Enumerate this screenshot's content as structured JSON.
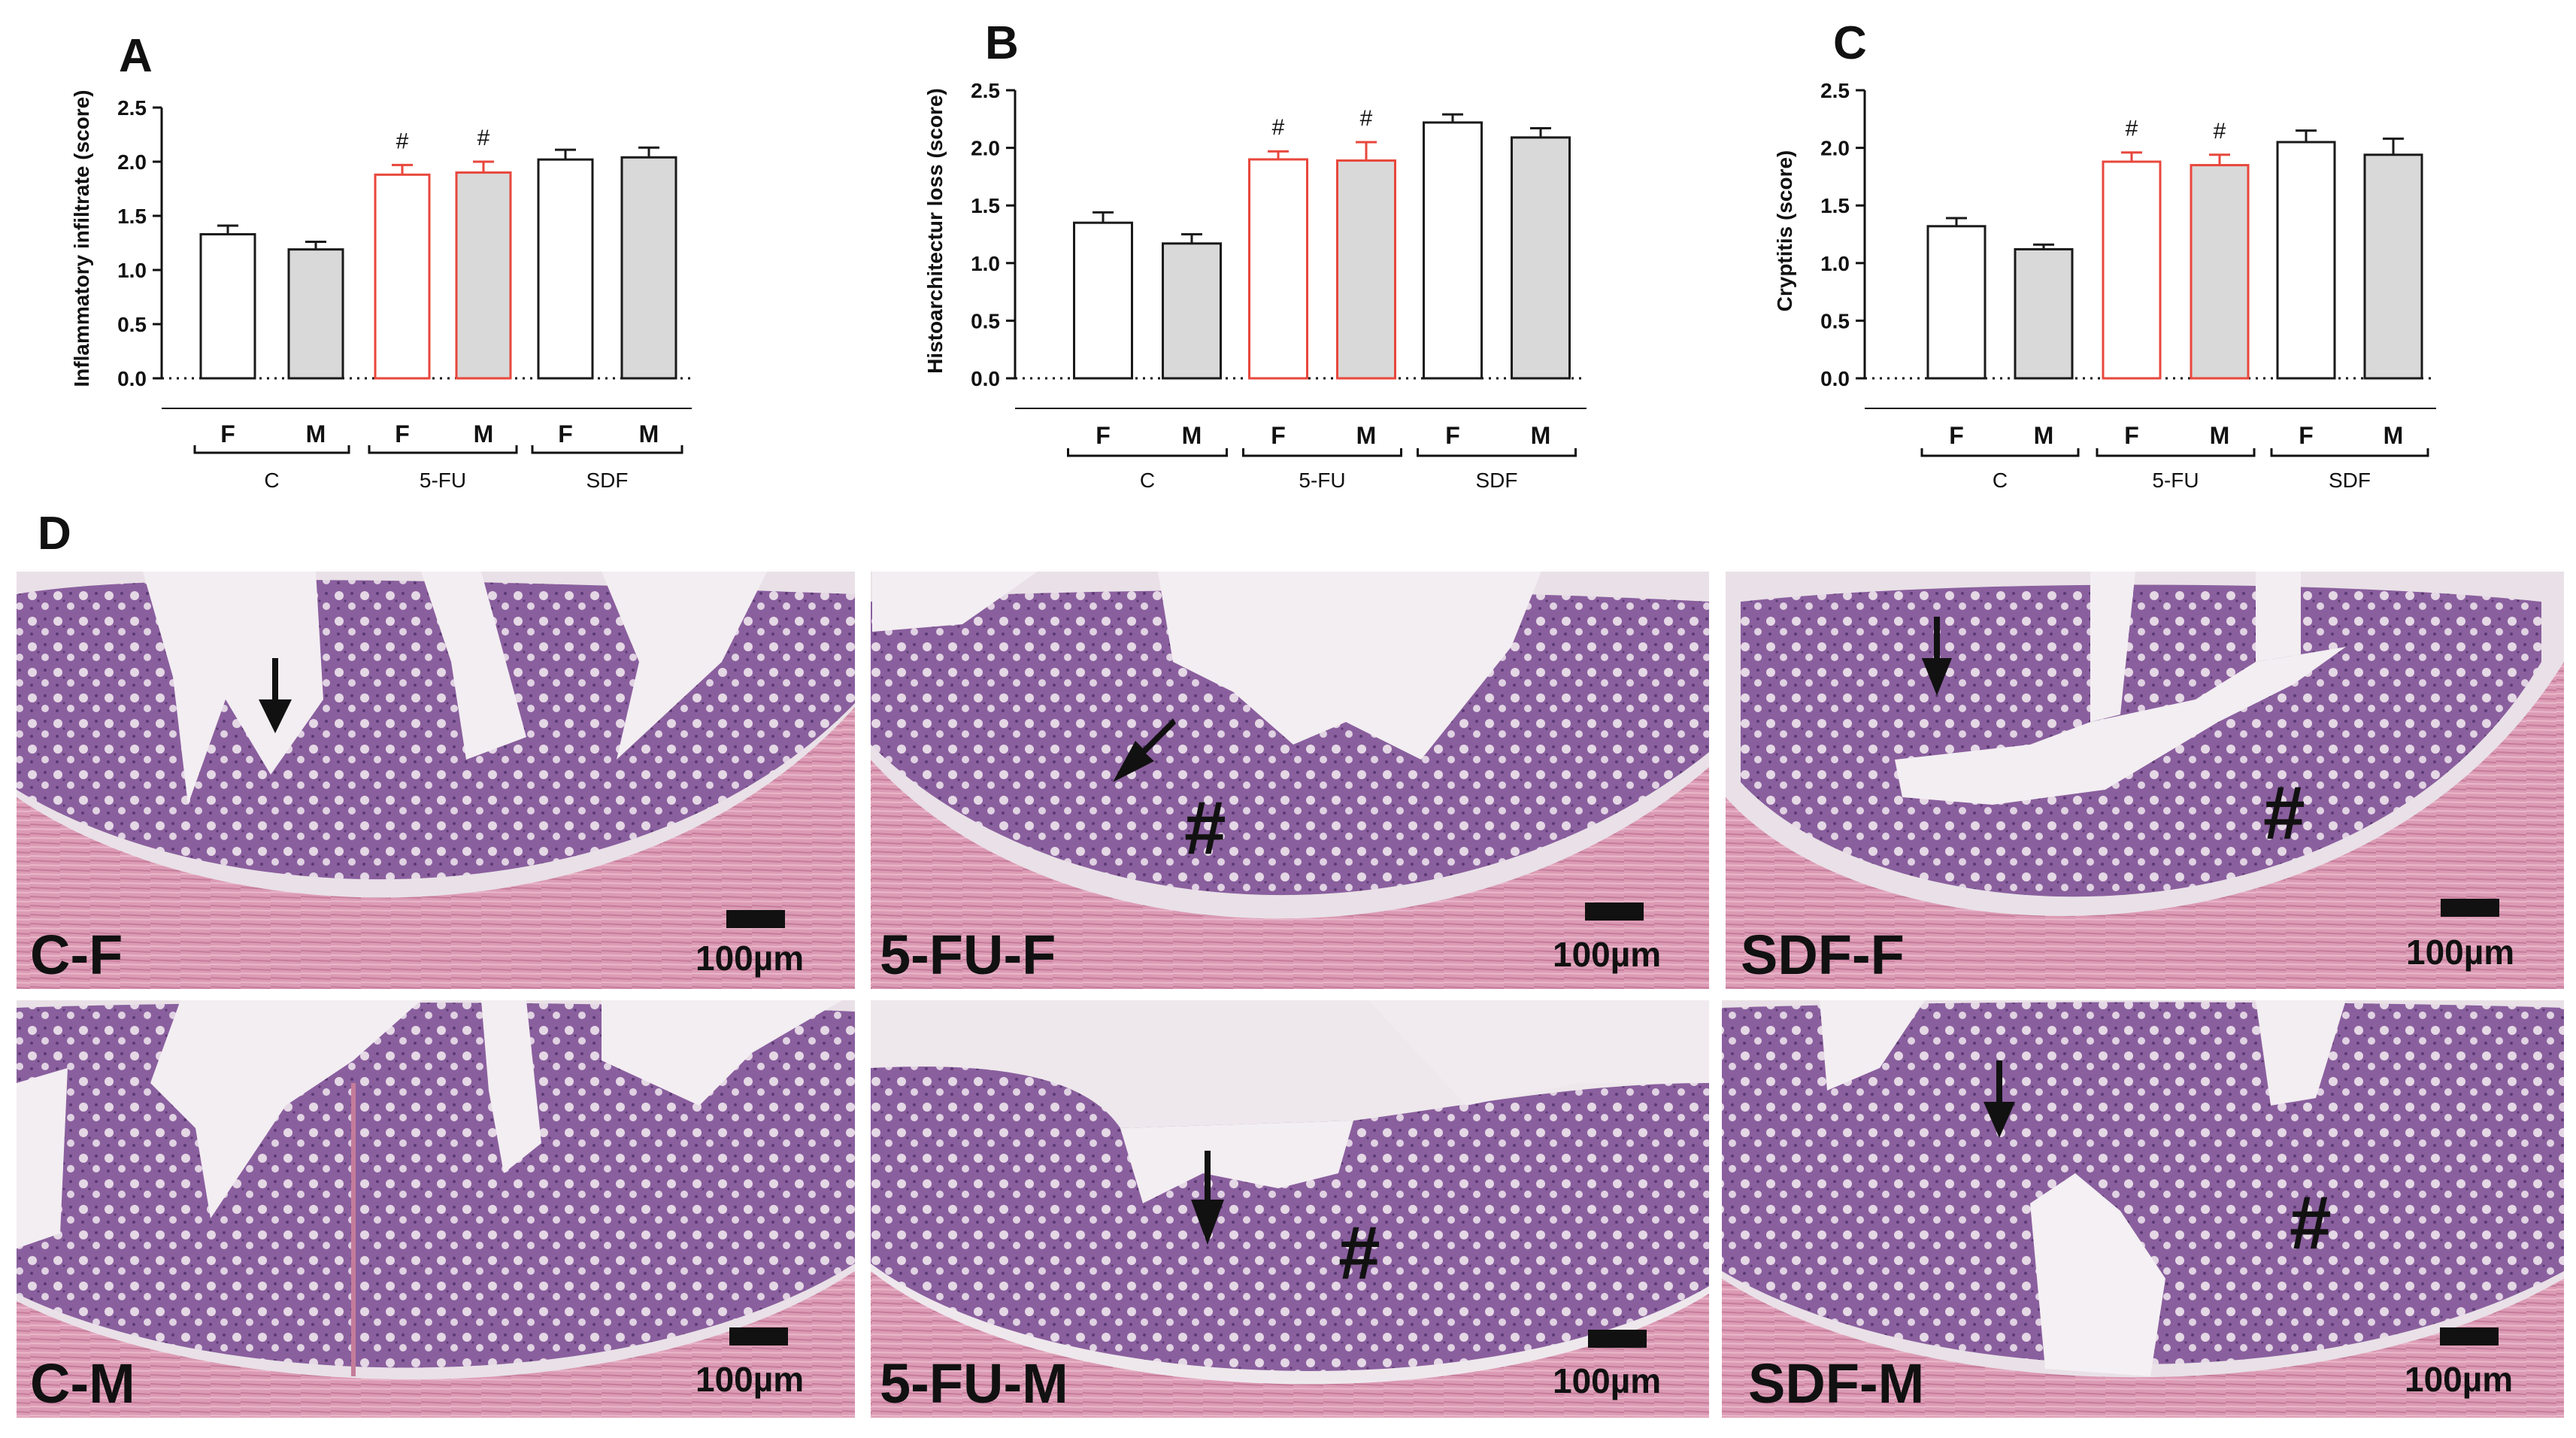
{
  "panel_d_label": "D",
  "chart_data": [
    {
      "type": "bar",
      "panel": "A",
      "ylabel": "Inflammatory infiltrate (score)",
      "ylim": [
        0,
        2.5
      ],
      "yticks": [
        "0.0",
        "0.5",
        "1.0",
        "1.5",
        "2.0",
        "2.5"
      ],
      "categories": [
        "F",
        "M",
        "F",
        "M",
        "F",
        "M"
      ],
      "groups": [
        {
          "label": "C",
          "members": [
            0,
            1
          ]
        },
        {
          "label": "5-FU",
          "members": [
            2,
            3
          ]
        },
        {
          "label": "SDF",
          "members": [
            4,
            5
          ]
        }
      ],
      "values": [
        1.33,
        1.19,
        1.88,
        1.9,
        2.02,
        2.04
      ],
      "errors": [
        0.08,
        0.07,
        0.09,
        0.1,
        0.09,
        0.09
      ],
      "significance": [
        "",
        "",
        "#",
        "#",
        "",
        ""
      ],
      "colors": {
        "fill": [
          "#ffffff",
          "#d9d9d9",
          "#ffffff",
          "#d9d9d9",
          "#ffffff",
          "#d9d9d9"
        ],
        "stroke": [
          "#1a1a1a",
          "#1a1a1a",
          "#e8473c",
          "#e8473c",
          "#1a1a1a",
          "#1a1a1a"
        ]
      },
      "grid": false,
      "legend": "none"
    },
    {
      "type": "bar",
      "panel": "B",
      "ylabel": "Histoarchitectur loss (score)",
      "ylim": [
        0,
        2.5
      ],
      "yticks": [
        "0.0",
        "0.5",
        "1.0",
        "1.5",
        "2.0",
        "2.5"
      ],
      "categories": [
        "F",
        "M",
        "F",
        "M",
        "F",
        "M"
      ],
      "groups": [
        {
          "label": "C",
          "members": [
            0,
            1
          ]
        },
        {
          "label": "5-FU",
          "members": [
            2,
            3
          ]
        },
        {
          "label": "SDF",
          "members": [
            4,
            5
          ]
        }
      ],
      "values": [
        1.35,
        1.17,
        1.9,
        1.89,
        2.22,
        2.09
      ],
      "errors": [
        0.09,
        0.08,
        0.07,
        0.16,
        0.07,
        0.08
      ],
      "significance": [
        "",
        "",
        "#",
        "#",
        "",
        ""
      ],
      "colors": {
        "fill": [
          "#ffffff",
          "#d9d9d9",
          "#ffffff",
          "#d9d9d9",
          "#ffffff",
          "#d9d9d9"
        ],
        "stroke": [
          "#1a1a1a",
          "#1a1a1a",
          "#e8473c",
          "#e8473c",
          "#1a1a1a",
          "#1a1a1a"
        ]
      },
      "grid": false,
      "legend": "none"
    },
    {
      "type": "bar",
      "panel": "C",
      "ylabel": "Cryptitis (score)",
      "ylim": [
        0,
        2.5
      ],
      "yticks": [
        "0.0",
        "0.5",
        "1.0",
        "1.5",
        "2.0",
        "2.5"
      ],
      "categories": [
        "F",
        "M",
        "F",
        "M",
        "F",
        "M"
      ],
      "groups": [
        {
          "label": "C",
          "members": [
            0,
            1
          ]
        },
        {
          "label": "5-FU",
          "members": [
            2,
            3
          ]
        },
        {
          "label": "SDF",
          "members": [
            4,
            5
          ]
        }
      ],
      "values": [
        1.32,
        1.12,
        1.88,
        1.85,
        2.05,
        1.94
      ],
      "errors": [
        0.07,
        0.04,
        0.08,
        0.09,
        0.1,
        0.14
      ],
      "significance": [
        "",
        "",
        "#",
        "#",
        "",
        ""
      ],
      "colors": {
        "fill": [
          "#ffffff",
          "#d9d9d9",
          "#ffffff",
          "#d9d9d9",
          "#ffffff",
          "#d9d9d9"
        ],
        "stroke": [
          "#1a1a1a",
          "#1a1a1a",
          "#e8473c",
          "#e8473c",
          "#1a1a1a",
          "#1a1a1a"
        ]
      },
      "grid": false,
      "legend": "none"
    }
  ],
  "micrographs": [
    {
      "label": "C-F",
      "scale": "100µm",
      "arrows": 1,
      "hash": ""
    },
    {
      "label": "5-FU-F",
      "scale": "100µm",
      "arrows": 1,
      "hash": "#"
    },
    {
      "label": "SDF-F",
      "scale": "100µm",
      "arrows": 1,
      "hash": "#"
    },
    {
      "label": "C-M",
      "scale": "100µm",
      "arrows": 0,
      "hash": ""
    },
    {
      "label": "5-FU-M",
      "scale": "100µm",
      "arrows": 1,
      "hash": "#"
    },
    {
      "label": "SDF-M",
      "scale": "100µm",
      "arrows": 1,
      "hash": "#"
    }
  ],
  "stain_colors": {
    "background": "#e9e1e7",
    "lumen": "#f3eef2",
    "mucosa": "#8a5f9e",
    "mucosa_dark": "#6c4986",
    "goblet": "#efe6ee",
    "muscle": "#dc9bb4",
    "muscle_dark": "#c57c9a"
  }
}
